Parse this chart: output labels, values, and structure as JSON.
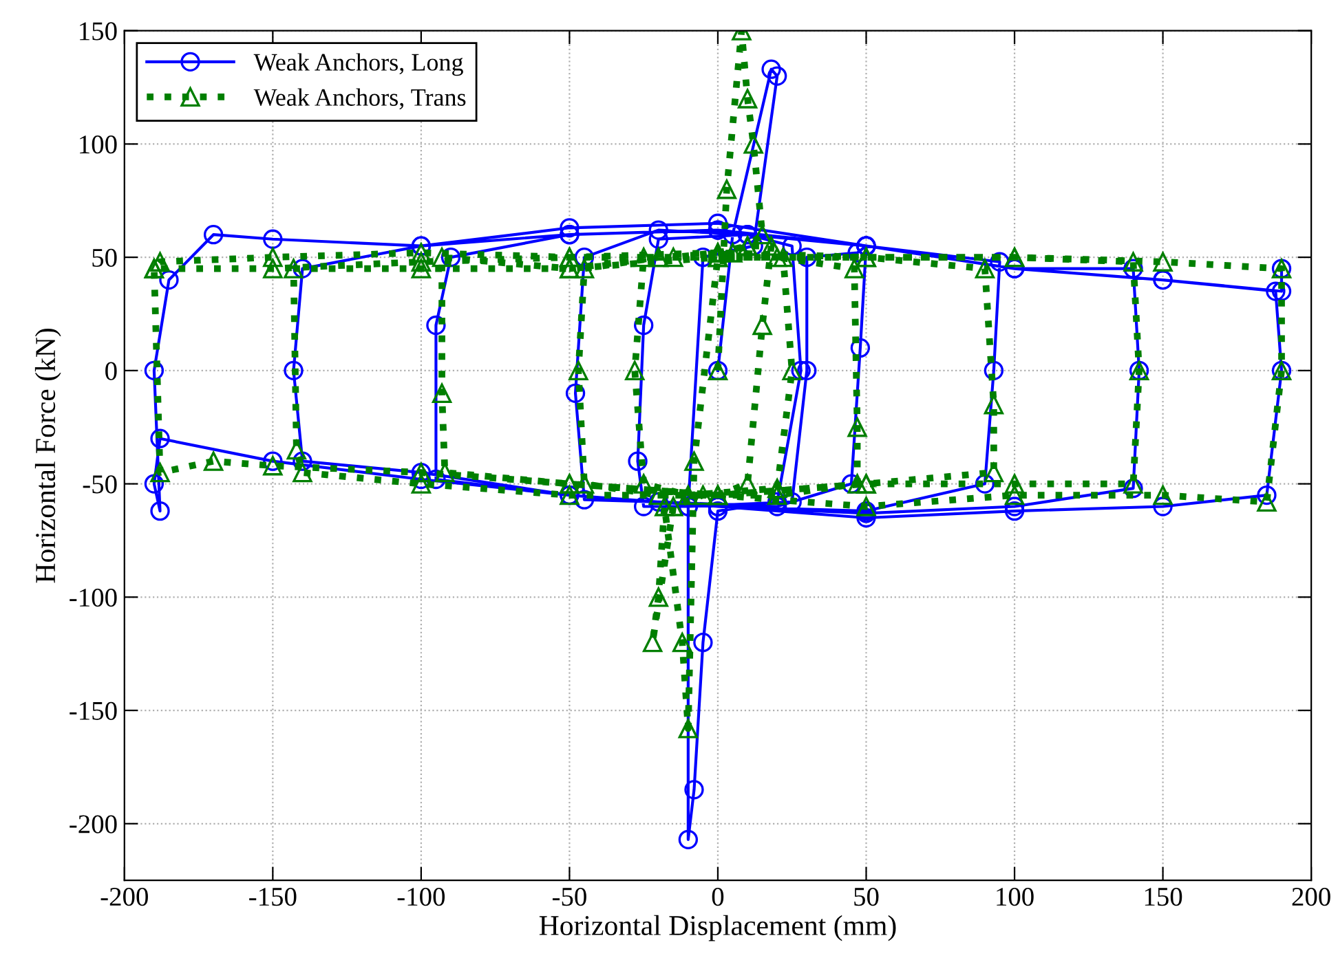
{
  "chart_data": {
    "type": "line",
    "xlabel": "Horizontal Displacement (mm)",
    "ylabel": "Horizontal Force (kN)",
    "xlim": [
      -200,
      200
    ],
    "xticks": [
      -200,
      -150,
      -100,
      -50,
      0,
      50,
      100,
      150,
      200
    ],
    "ylim": [
      -225,
      150
    ],
    "yticks": [
      -200,
      -150,
      -100,
      -50,
      0,
      50,
      100,
      150
    ],
    "grid": true,
    "legend": "top left",
    "series": [
      {
        "name": "Weak Anchors, Long",
        "color": "#0000ff",
        "marker": "circle",
        "line_style": "solid",
        "x": [
          0,
          5,
          18,
          20,
          12,
          -5,
          -10,
          -10,
          -8,
          -5,
          0,
          20,
          28,
          25,
          10,
          -20,
          -25,
          -27,
          -25,
          -10,
          25,
          30,
          30,
          47,
          50,
          48,
          45,
          20,
          -20,
          -45,
          -48,
          -45,
          -20,
          10,
          50,
          95,
          93,
          90,
          50,
          0,
          -50,
          -95,
          -95,
          -90,
          -50,
          0,
          50,
          100,
          140,
          142,
          140,
          100,
          50,
          0,
          -50,
          -100,
          -140,
          -143,
          -140,
          -100,
          -50,
          0,
          50,
          100,
          150,
          188,
          190,
          185,
          150,
          100,
          50,
          0,
          -50,
          -100,
          -150,
          -188,
          -190,
          -188,
          -190,
          -185,
          -170,
          -150,
          -100,
          -50,
          0,
          50,
          100,
          150,
          190,
          190
        ],
        "values": [
          0,
          60,
          133,
          130,
          55,
          50,
          -60,
          -207,
          -185,
          -120,
          -62,
          -58,
          0,
          55,
          60,
          58,
          20,
          -40,
          -60,
          -60,
          -58,
          0,
          50,
          52,
          55,
          10,
          -50,
          -60,
          -58,
          -57,
          -10,
          50,
          62,
          60,
          55,
          48,
          0,
          -50,
          -62,
          -60,
          -55,
          -48,
          20,
          50,
          60,
          62,
          55,
          45,
          45,
          0,
          -52,
          -60,
          -63,
          -60,
          -55,
          -45,
          -40,
          0,
          45,
          55,
          60,
          62,
          55,
          45,
          40,
          35,
          0,
          -55,
          -60,
          -62,
          -65,
          -60,
          -55,
          -48,
          -40,
          -30,
          -50,
          -62,
          0,
          40,
          60,
          58,
          55,
          63,
          65,
          55,
          45,
          40,
          35,
          45
        ]
      },
      {
        "name": "Weak Anchors, Trans",
        "color": "#007f00",
        "marker": "triangle",
        "line_style": "dotted",
        "x": [
          0,
          3,
          8,
          10,
          12,
          15,
          10,
          0,
          -8,
          -10,
          -12,
          -18,
          -20,
          -22,
          -15,
          -5,
          0,
          10,
          15,
          18,
          10,
          0,
          -15,
          -25,
          -28,
          -25,
          -10,
          20,
          25,
          22,
          5,
          -20,
          -45,
          -47,
          -45,
          -20,
          20,
          47,
          47,
          46,
          20,
          -20,
          -50,
          -93,
          -93,
          -92,
          -50,
          0,
          50,
          93,
          93,
          90,
          50,
          0,
          -50,
          -100,
          -143,
          -142,
          -140,
          -100,
          -50,
          0,
          50,
          100,
          140,
          142,
          140,
          100,
          50,
          0,
          -50,
          -100,
          -150,
          -188,
          -190,
          -188,
          -170,
          -150,
          -100,
          -50,
          0,
          50,
          100,
          150,
          185,
          190,
          190,
          150,
          100,
          50,
          0,
          -50,
          -100,
          -150,
          -190
        ],
        "values": [
          0,
          80,
          150,
          120,
          100,
          60,
          55,
          50,
          -40,
          -158,
          -120,
          -60,
          -100,
          -120,
          -60,
          -55,
          -55,
          -50,
          20,
          55,
          55,
          52,
          50,
          50,
          0,
          -50,
          -55,
          -52,
          0,
          50,
          52,
          50,
          45,
          0,
          -50,
          -55,
          -55,
          -50,
          -25,
          45,
          50,
          50,
          45,
          50,
          -10,
          -45,
          -50,
          -55,
          -50,
          -45,
          -15,
          45,
          50,
          50,
          45,
          45,
          45,
          -35,
          -45,
          -50,
          -55,
          -55,
          -50,
          -50,
          -50,
          0,
          48,
          50,
          50,
          50,
          50,
          52,
          50,
          48,
          45,
          -45,
          -40,
          -42,
          -45,
          -50,
          -55,
          -60,
          -55,
          -55,
          -58,
          0,
          45,
          48,
          50,
          50,
          52,
          50,
          48,
          45,
          45
        ]
      }
    ]
  }
}
